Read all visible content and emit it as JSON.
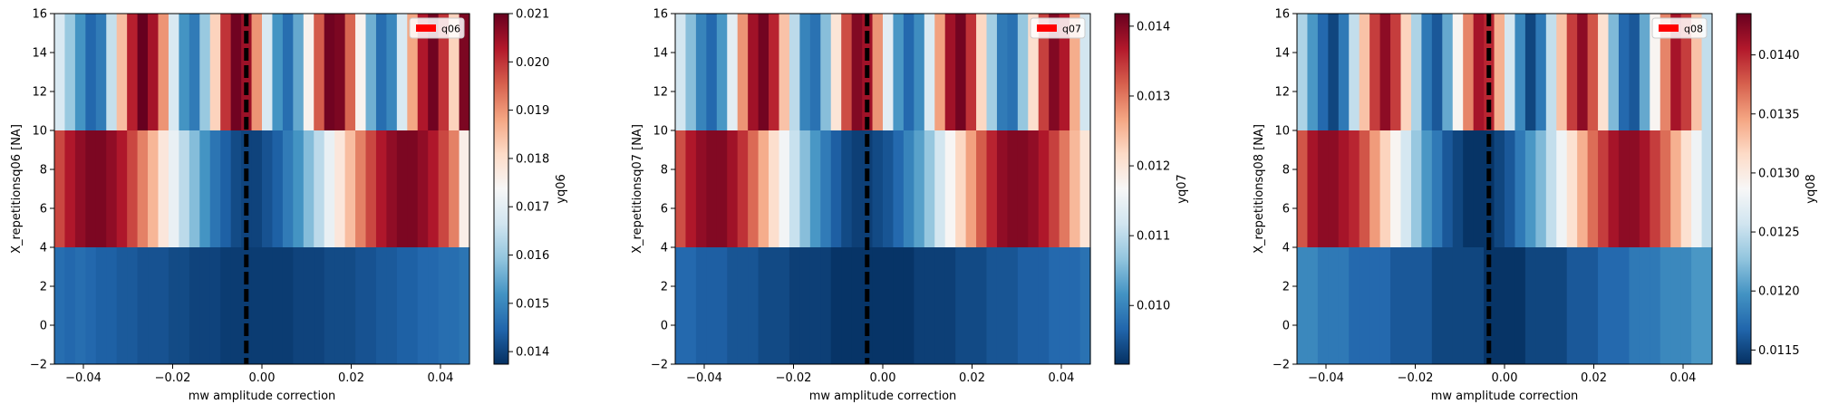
{
  "chart_data": [
    {
      "type": "heatmap",
      "xlabel": "mw amplitude correction",
      "ylabel": "X_repetitionsq06 [NA]",
      "colorbar_label": "yq06",
      "legend": "q06",
      "legend_placement": "top-right",
      "legend_color": "#ff0000",
      "colormap": "RdBu_r",
      "xlim": [
        -0.0465,
        0.0465
      ],
      "ylim": [
        -2,
        16
      ],
      "xticks": [
        -0.04,
        -0.02,
        0.0,
        0.02,
        0.04
      ],
      "xtick_labels": [
        "−0.04",
        "−0.02",
        "0.00",
        "0.02",
        "0.04"
      ],
      "yticks": [
        -2,
        0,
        2,
        4,
        6,
        8,
        10,
        12,
        14,
        16
      ],
      "ytick_labels": [
        "−2",
        "0",
        "2",
        "4",
        "6",
        "8",
        "10",
        "12",
        "14",
        "16"
      ],
      "vline_x": -0.0035,
      "clim": [
        0.01374,
        0.021
      ],
      "cbar_ticks": [
        0.014,
        0.015,
        0.016,
        0.017,
        0.018,
        0.019,
        0.02,
        0.021
      ],
      "cbar_tick_labels": [
        "0.014",
        "0.015",
        "0.016",
        "0.017",
        "0.018",
        "0.019",
        "0.020",
        "0.021"
      ],
      "row_edges": [
        -2,
        4,
        10,
        16
      ],
      "rows": [
        [
          0.0146,
          0.0145,
          0.0146,
          0.0145,
          0.0144,
          0.0144,
          0.0143,
          0.0143,
          0.0142,
          0.0142,
          0.0142,
          0.0141,
          0.0141,
          0.014,
          0.014,
          0.014,
          0.0139,
          0.0139,
          0.0139,
          0.0139,
          0.0139,
          0.0139,
          0.0139,
          0.014,
          0.014,
          0.014,
          0.0141,
          0.0141,
          0.0141,
          0.0142,
          0.0142,
          0.0143,
          0.0143,
          0.0144,
          0.0144,
          0.0145,
          0.0145,
          0.0146,
          0.0146,
          0.0147
        ],
        [
          0.0198,
          0.0203,
          0.0206,
          0.0208,
          0.0208,
          0.0206,
          0.0203,
          0.0198,
          0.0192,
          0.0186,
          0.0178,
          0.0171,
          0.0164,
          0.0158,
          0.0152,
          0.0147,
          0.0144,
          0.0141,
          0.014,
          0.014,
          0.0142,
          0.0144,
          0.0148,
          0.0152,
          0.0158,
          0.0164,
          0.0171,
          0.0178,
          0.0185,
          0.0192,
          0.0198,
          0.0203,
          0.0206,
          0.0208,
          0.0208,
          0.0206,
          0.0203,
          0.0198,
          0.0192,
          0.0176
        ],
        [
          0.0168,
          0.016,
          0.0152,
          0.0145,
          0.0148,
          0.0165,
          0.0185,
          0.0202,
          0.021,
          0.0204,
          0.019,
          0.0168,
          0.0152,
          0.0148,
          0.016,
          0.0182,
          0.02,
          0.0209,
          0.0205,
          0.019,
          0.0168,
          0.0152,
          0.0146,
          0.0155,
          0.0175,
          0.0196,
          0.0209,
          0.0208,
          0.0195,
          0.0175,
          0.0156,
          0.0146,
          0.015,
          0.0168,
          0.0188,
          0.0203,
          0.0209,
          0.02,
          0.0182,
          0.0208
        ]
      ]
    },
    {
      "type": "heatmap",
      "xlabel": "mw amplitude correction",
      "ylabel": "X_repetitionsq07 [NA]",
      "colorbar_label": "yq07",
      "legend": "q07",
      "legend_placement": "top-right",
      "legend_color": "#ff0000",
      "colormap": "RdBu_r",
      "xlim": [
        -0.0465,
        0.0465
      ],
      "ylim": [
        -2,
        16
      ],
      "xticks": [
        -0.04,
        -0.02,
        0.0,
        0.02,
        0.04
      ],
      "xtick_labels": [
        "−0.04",
        "−0.02",
        "0.00",
        "0.02",
        "0.04"
      ],
      "yticks": [
        -2,
        0,
        2,
        4,
        6,
        8,
        10,
        12,
        14,
        16
      ],
      "ytick_labels": [
        "−2",
        "0",
        "2",
        "4",
        "6",
        "8",
        "10",
        "12",
        "14",
        "16"
      ],
      "vline_x": -0.0035,
      "clim": [
        0.00916,
        0.01418
      ],
      "cbar_ticks": [
        0.01,
        0.011,
        0.012,
        0.013,
        0.014
      ],
      "cbar_tick_labels": [
        "0.010",
        "0.011",
        "0.012",
        "0.013",
        "0.014"
      ],
      "row_edges": [
        -2,
        4,
        10,
        16
      ],
      "rows": [
        [
          0.0097,
          0.0097,
          0.0096,
          0.0096,
          0.0096,
          0.0095,
          0.0095,
          0.0095,
          0.0094,
          0.0094,
          0.0094,
          0.0093,
          0.0093,
          0.0093,
          0.0093,
          0.0092,
          0.0092,
          0.0092,
          0.0092,
          0.0092,
          0.0092,
          0.0092,
          0.0092,
          0.0093,
          0.0093,
          0.0093,
          0.0093,
          0.0094,
          0.0094,
          0.0094,
          0.0095,
          0.0095,
          0.0095,
          0.0096,
          0.0096,
          0.0096,
          0.0097,
          0.0097,
          0.0097,
          0.0098
        ],
        [
          0.0133,
          0.0137,
          0.0139,
          0.014,
          0.014,
          0.0138,
          0.0135,
          0.0131,
          0.0126,
          0.0121,
          0.0116,
          0.0111,
          0.0106,
          0.0102,
          0.0099,
          0.0096,
          0.0094,
          0.0093,
          0.0093,
          0.0094,
          0.0095,
          0.0097,
          0.01,
          0.0103,
          0.0107,
          0.0112,
          0.0117,
          0.0122,
          0.0127,
          0.0132,
          0.0136,
          0.0139,
          0.014,
          0.014,
          0.0139,
          0.0137,
          0.0134,
          0.013,
          0.0125,
          0.012
        ],
        [
          0.0112,
          0.0106,
          0.01,
          0.0097,
          0.0102,
          0.0114,
          0.0128,
          0.0138,
          0.0141,
          0.0136,
          0.0124,
          0.011,
          0.01,
          0.0098,
          0.0106,
          0.012,
          0.0133,
          0.014,
          0.0138,
          0.0128,
          0.0114,
          0.0102,
          0.0097,
          0.0101,
          0.0113,
          0.0127,
          0.0138,
          0.0141,
          0.0135,
          0.0122,
          0.0108,
          0.0099,
          0.0098,
          0.0107,
          0.0121,
          0.0134,
          0.014,
          0.0137,
          0.0126,
          0.0112
        ]
      ]
    },
    {
      "type": "heatmap",
      "xlabel": "mw amplitude correction",
      "ylabel": "X_repetitionsq08 [NA]",
      "colorbar_label": "yq08",
      "legend": "q08",
      "legend_placement": "top-right",
      "legend_color": "#ff0000",
      "colormap": "RdBu_r",
      "xlim": [
        -0.0465,
        0.0465
      ],
      "ylim": [
        -2,
        16
      ],
      "xticks": [
        -0.04,
        -0.02,
        0.0,
        0.02,
        0.04
      ],
      "xtick_labels": [
        "−0.04",
        "−0.02",
        "0.00",
        "0.02",
        "0.04"
      ],
      "yticks": [
        -2,
        0,
        2,
        4,
        6,
        8,
        10,
        12,
        14,
        16
      ],
      "ytick_labels": [
        "−2",
        "0",
        "2",
        "4",
        "6",
        "8",
        "10",
        "12",
        "14",
        "16"
      ],
      "vline_x": -0.0035,
      "clim": [
        0.01138,
        0.01435
      ],
      "cbar_ticks": [
        0.0115,
        0.012,
        0.0125,
        0.013,
        0.0135,
        0.014
      ],
      "cbar_tick_labels": [
        "0.0115",
        "0.0120",
        "0.0125",
        "0.0130",
        "0.0135",
        "0.0140"
      ],
      "row_edges": [
        -2,
        4,
        10,
        16
      ],
      "rows": [
        [
          0.0119,
          0.0119,
          0.0118,
          0.0118,
          0.0118,
          0.0117,
          0.0117,
          0.0117,
          0.0117,
          0.0116,
          0.0116,
          0.0116,
          0.0116,
          0.0115,
          0.0115,
          0.0115,
          0.0115,
          0.0115,
          0.0114,
          0.0114,
          0.0114,
          0.0114,
          0.0115,
          0.0115,
          0.0115,
          0.0115,
          0.0116,
          0.0116,
          0.0116,
          0.0117,
          0.0117,
          0.0117,
          0.0118,
          0.0118,
          0.0118,
          0.0119,
          0.0119,
          0.0119,
          0.012,
          0.012
        ],
        [
          0.0138,
          0.0141,
          0.0142,
          0.0142,
          0.0141,
          0.014,
          0.0138,
          0.0135,
          0.0132,
          0.0129,
          0.0126,
          0.0123,
          0.012,
          0.0118,
          0.0116,
          0.0115,
          0.0114,
          0.0114,
          0.0114,
          0.0115,
          0.0116,
          0.0118,
          0.012,
          0.0122,
          0.0125,
          0.0128,
          0.0131,
          0.0134,
          0.0137,
          0.0139,
          0.0141,
          0.0142,
          0.0142,
          0.0141,
          0.0139,
          0.0137,
          0.0134,
          0.0131,
          0.0128,
          0.0125
        ],
        [
          0.0124,
          0.012,
          0.0117,
          0.0115,
          0.0118,
          0.0125,
          0.0133,
          0.0139,
          0.0142,
          0.0139,
          0.0132,
          0.0124,
          0.0118,
          0.0116,
          0.0121,
          0.0129,
          0.0136,
          0.0141,
          0.014,
          0.0134,
          0.0126,
          0.0119,
          0.0115,
          0.0118,
          0.0125,
          0.0133,
          0.0139,
          0.0142,
          0.0138,
          0.0131,
          0.0122,
          0.0117,
          0.0116,
          0.0121,
          0.0129,
          0.0136,
          0.0141,
          0.0139,
          0.0133,
          0.0125
        ]
      ]
    }
  ]
}
